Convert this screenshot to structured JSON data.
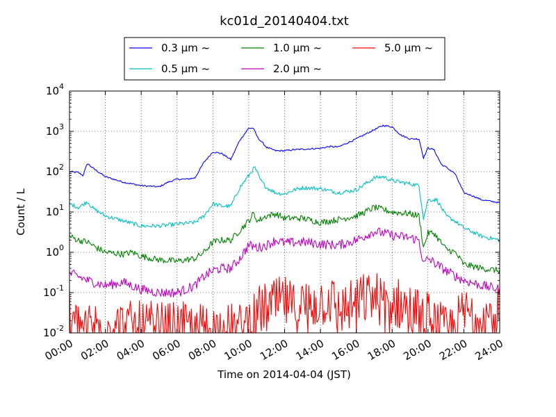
{
  "chart_data": {
    "type": "line",
    "title": "kc01d_20140404.txt",
    "xlabel": "Time on 2014-04-04 (JST)",
    "ylabel": "Count / L",
    "y_scale": "log",
    "ylim": [
      0.01,
      10000
    ],
    "xlim": [
      "00:00",
      "24:00"
    ],
    "grid": true,
    "grid_style": "dotted",
    "legend_position": "top",
    "x_ticks": [
      "00:00",
      "02:00",
      "04:00",
      "06:00",
      "08:00",
      "10:00",
      "12:00",
      "14:00",
      "16:00",
      "18:00",
      "20:00",
      "22:00",
      "24:00"
    ],
    "y_ticks": [
      {
        "base": "10",
        "exp": "-2"
      },
      {
        "base": "10",
        "exp": "-1"
      },
      {
        "base": "10",
        "exp": "0"
      },
      {
        "base": "10",
        "exp": "1"
      },
      {
        "base": "10",
        "exp": "2"
      },
      {
        "base": "10",
        "exp": "3"
      },
      {
        "base": "10",
        "exp": "4"
      }
    ],
    "series": [
      {
        "name": "0.3 μm ~",
        "color": "#0000ff",
        "noise": 0.02,
        "x": [
          "00:00",
          "00:30",
          "00:45",
          "01:00",
          "01:20",
          "02:00",
          "03:00",
          "04:00",
          "05:00",
          "05:30",
          "06:00",
          "06:30",
          "07:00",
          "07:30",
          "08:00",
          "08:30",
          "09:00",
          "09:30",
          "10:00",
          "10:15",
          "10:30",
          "11:00",
          "11:30",
          "12:00",
          "12:30",
          "13:00",
          "14:00",
          "14:30",
          "15:00",
          "16:00",
          "17:00",
          "17:30",
          "18:00",
          "18:30",
          "19:00",
          "19:30",
          "19:45",
          "20:00",
          "20:20",
          "20:45",
          "21:00",
          "21:30",
          "22:00",
          "22:30",
          "23:00",
          "24:00"
        ],
        "y": [
          100,
          95,
          80,
          160,
          120,
          75,
          55,
          45,
          42,
          55,
          65,
          65,
          70,
          170,
          310,
          280,
          200,
          600,
          1200,
          1200,
          700,
          400,
          330,
          330,
          350,
          360,
          380,
          420,
          410,
          650,
          1100,
          1400,
          1300,
          800,
          650,
          650,
          220,
          390,
          350,
          150,
          130,
          90,
          30,
          25,
          20,
          17
        ]
      },
      {
        "name": "0.5 μm ~",
        "color": "#00bfbf",
        "noise": 0.05,
        "x": [
          "00:00",
          "00:30",
          "01:00",
          "01:20",
          "02:00",
          "03:00",
          "04:00",
          "05:00",
          "06:00",
          "07:00",
          "07:30",
          "08:00",
          "08:30",
          "09:00",
          "09:30",
          "10:00",
          "10:20",
          "10:40",
          "11:00",
          "11:30",
          "12:00",
          "12:30",
          "13:00",
          "14:00",
          "15:00",
          "16:00",
          "16:30",
          "17:00",
          "17:30",
          "18:00",
          "19:00",
          "19:30",
          "19:45",
          "20:00",
          "20:30",
          "21:00",
          "21:30",
          "22:00",
          "23:00",
          "24:00"
        ],
        "y": [
          16,
          13,
          18,
          12,
          8,
          6,
          4.5,
          4.5,
          5,
          5.5,
          8,
          16,
          14,
          14,
          40,
          80,
          130,
          60,
          40,
          30,
          28,
          35,
          40,
          38,
          30,
          35,
          50,
          70,
          75,
          60,
          50,
          45,
          7,
          20,
          20,
          8,
          6,
          4,
          2.5,
          2
        ]
      },
      {
        "name": "1.0 μm ~",
        "color": "#008000",
        "noise": 0.08,
        "x": [
          "00:00",
          "00:30",
          "01:00",
          "01:30",
          "02:00",
          "03:00",
          "03:30",
          "04:00",
          "05:00",
          "06:00",
          "06:30",
          "07:00",
          "07:30",
          "08:00",
          "08:30",
          "09:00",
          "09:30",
          "10:00",
          "10:15",
          "10:30",
          "11:00",
          "11:30",
          "12:00",
          "13:00",
          "14:00",
          "15:00",
          "16:00",
          "16:30",
          "17:00",
          "18:00",
          "19:00",
          "19:30",
          "19:45",
          "20:00",
          "20:20",
          "21:00",
          "21:30",
          "22:00",
          "23:00",
          "24:00"
        ],
        "y": [
          2.5,
          2,
          1.8,
          1.3,
          1,
          0.9,
          1,
          0.8,
          0.65,
          0.6,
          0.65,
          0.7,
          1,
          1.8,
          2,
          2,
          3.5,
          6,
          9,
          6,
          8,
          9,
          7,
          7,
          5.5,
          6.5,
          8,
          10,
          13,
          10,
          9,
          8,
          1.3,
          3,
          3,
          1.2,
          1,
          0.5,
          0.4,
          0.35
        ]
      },
      {
        "name": "2.0 μm ~",
        "color": "#bf00bf",
        "noise": 0.12,
        "x": [
          "00:00",
          "00:30",
          "01:00",
          "02:00",
          "03:00",
          "04:00",
          "05:00",
          "06:00",
          "06:30",
          "07:00",
          "07:30",
          "08:00",
          "08:30",
          "09:00",
          "09:30",
          "10:00",
          "10:30",
          "11:00",
          "11:30",
          "12:00",
          "13:00",
          "14:00",
          "15:00",
          "16:00",
          "17:00",
          "17:30",
          "18:00",
          "19:00",
          "19:30",
          "19:45",
          "20:00",
          "21:00",
          "22:00",
          "23:00",
          "24:00"
        ],
        "y": [
          0.3,
          0.25,
          0.2,
          0.15,
          0.18,
          0.12,
          0.1,
          0.1,
          0.12,
          0.15,
          0.25,
          0.35,
          0.4,
          0.4,
          0.7,
          1.5,
          1.3,
          1.5,
          2,
          1.7,
          1.8,
          1.6,
          1.5,
          2,
          3.3,
          3,
          2.6,
          2.3,
          2,
          0.5,
          0.7,
          0.35,
          0.2,
          0.15,
          0.12
        ]
      },
      {
        "name": "5.0 μm ~",
        "color": "#ff0000",
        "noise": 0.3,
        "x": [
          "00:00",
          "00:15",
          "09:30",
          "10:00",
          "10:30",
          "11:00",
          "11:30",
          "12:00",
          "12:30",
          "13:00",
          "13:30",
          "14:00",
          "14:30",
          "15:00",
          "15:30",
          "16:00",
          "16:30",
          "17:00",
          "17:30",
          "18:00",
          "18:30",
          "19:00",
          "19:30",
          "20:00",
          "21:00",
          "21:30",
          "22:00",
          "22:30",
          "23:00",
          "23:30",
          "24:00"
        ],
        "y": [
          0.04,
          0.015,
          0.012,
          0.02,
          0.035,
          0.04,
          0.05,
          0.06,
          0.04,
          0.05,
          0.05,
          0.06,
          0.07,
          0.04,
          0.04,
          0.06,
          0.07,
          0.08,
          0.06,
          0.06,
          0.05,
          0.04,
          0.03,
          0.025,
          0.01,
          0.015,
          0.03,
          0.03,
          0.03,
          0.025,
          0.03
        ]
      }
    ]
  }
}
